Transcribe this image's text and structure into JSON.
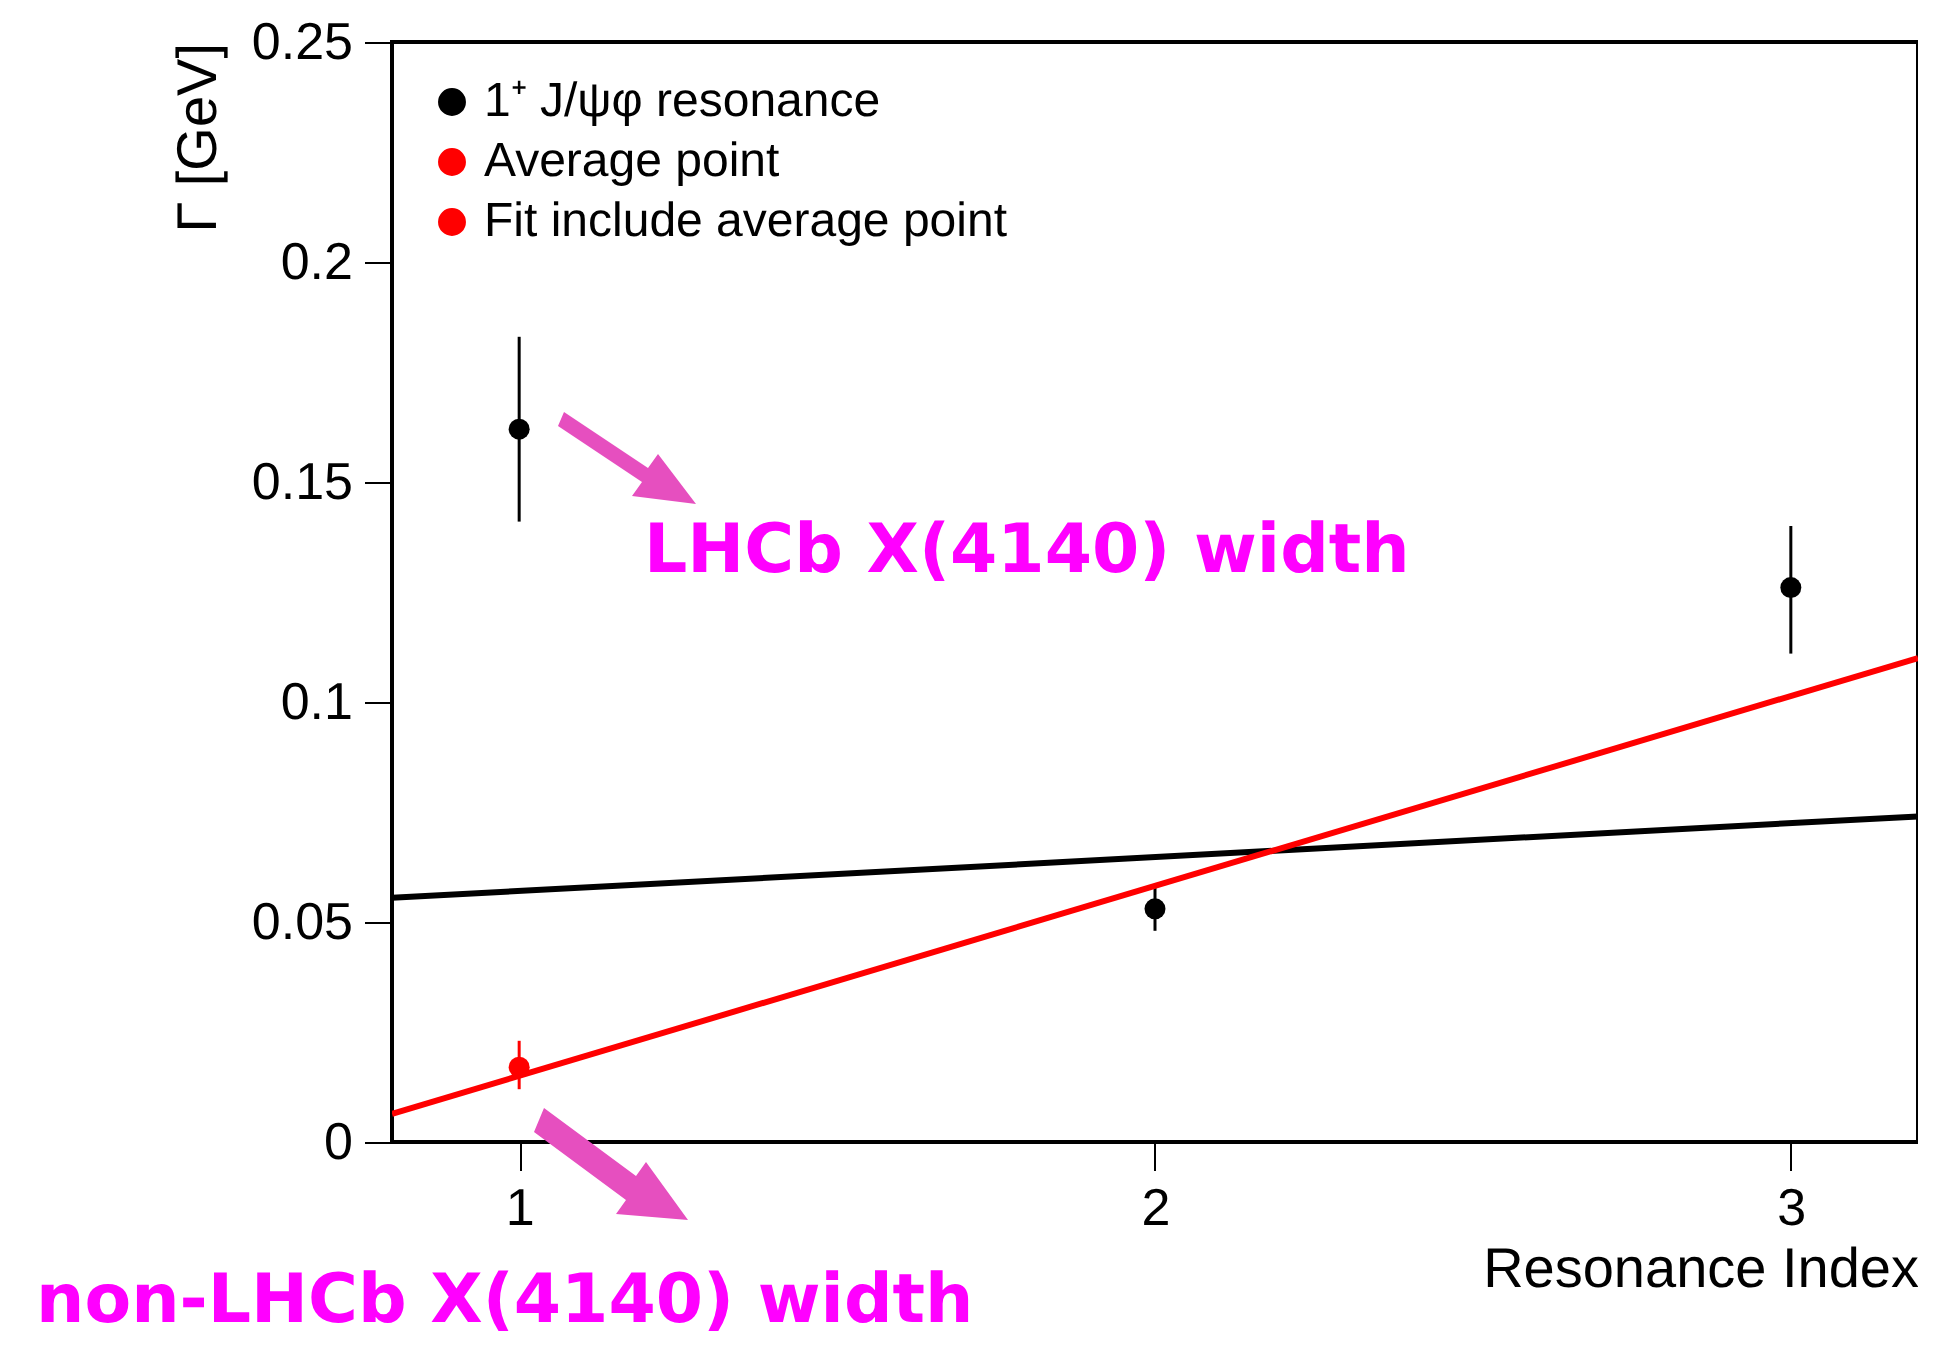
{
  "chart_data": {
    "type": "scatter",
    "xlabel": "Resonance Index",
    "ylabel": "Γ [GeV]",
    "xlim": [
      0.8,
      3.2
    ],
    "xticks": [
      1,
      2,
      3
    ],
    "ylim": [
      0,
      0.25
    ],
    "yticks": [
      0,
      0.05,
      0.1,
      0.15,
      0.2,
      0.25
    ],
    "legend": "top left",
    "annotations": [
      "LHCb X(4140) width",
      "non-LHCb X(4140) width"
    ],
    "series": [
      {
        "name": "1⁺ J/ψφ resonance",
        "marker": "circle",
        "color": "#000000",
        "x": [
          1,
          2,
          3
        ],
        "values": [
          0.162,
          0.053,
          0.126
        ],
        "errors": [
          [
            0.141,
            0.183
          ],
          [
            0.048,
            0.058
          ],
          [
            0.111,
            0.14
          ]
        ]
      },
      {
        "type": "line",
        "color": "#000000",
        "x": [
          0.8,
          3.2
        ],
        "values": [
          0.0555,
          0.074
        ]
      },
      {
        "name": "Average point",
        "marker": "circle",
        "color": "#ff0000",
        "x": [
          1
        ],
        "values": [
          0.017
        ],
        "errors": [
          [
            0.012,
            0.023
          ]
        ]
      },
      {
        "name": "Fit include average point",
        "type": "line",
        "color": "#ff0000",
        "x": [
          0.8,
          3.2
        ],
        "values": [
          0.0064,
          0.11
        ]
      }
    ]
  }
}
